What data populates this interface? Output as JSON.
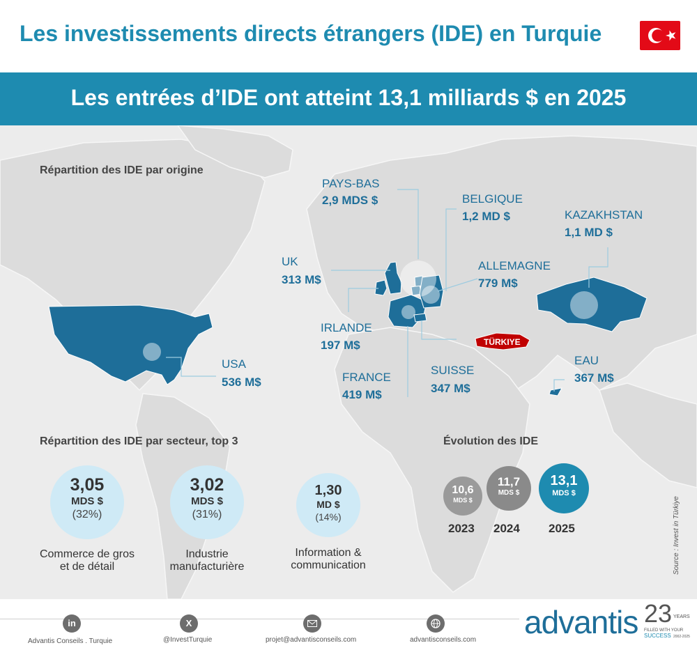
{
  "title": "Les investissements directs étrangers (IDE) en Turquie",
  "headline": "Les entrées d’IDE ont atteint 13,1 milliards $ en 2025",
  "colors": {
    "accent": "#1e8bb0",
    "country": "#1e6e99",
    "turkey": "#c00000"
  },
  "origin": {
    "heading": "Répartition des IDE par origine",
    "countries": [
      {
        "name": "PAYS-BAS",
        "value": "2,9 MDS $"
      },
      {
        "name": "BELGIQUE",
        "value": "1,2 MD $"
      },
      {
        "name": "KAZAKHSTAN",
        "value": "1,1 MD $"
      },
      {
        "name": "UK",
        "value": "313 M$"
      },
      {
        "name": "ALLEMAGNE",
        "value": "779 M$"
      },
      {
        "name": "IRLANDE",
        "value": "197 M$"
      },
      {
        "name": "USA",
        "value": "536 M$"
      },
      {
        "name": "FRANCE",
        "value": "419 M$"
      },
      {
        "name": "SUISSE",
        "value": "347 M$"
      },
      {
        "name": "EAU",
        "value": "367 M$"
      }
    ],
    "turkey_label": "TÜRKIYE"
  },
  "sector": {
    "heading": "Répartition des IDE par secteur, top 3",
    "items": [
      {
        "value": "3,05",
        "unit": "MDS $",
        "share": "(32%)",
        "label1": "Commerce de gros",
        "label2": "et de détail"
      },
      {
        "value": "3,02",
        "unit": "MDS $",
        "share": "(31%)",
        "label1": "Industrie",
        "label2": "manufacturière"
      },
      {
        "value": "1,30",
        "unit": "MD $",
        "share": "(14%)",
        "label1": "Information &",
        "label2": "communication"
      }
    ]
  },
  "evolution": {
    "heading": "Évolution des IDE",
    "items": [
      {
        "year": "2023",
        "value": "10,6",
        "unit": "MDS $",
        "color": "#9a9a9a"
      },
      {
        "year": "2024",
        "value": "11,7",
        "unit": "MDS $",
        "color": "#8a8a8a"
      },
      {
        "year": "2025",
        "value": "13,1",
        "unit": "MDS $",
        "color": "#1e8bb0"
      }
    ]
  },
  "source": "Source : Invest in Türkiye",
  "footer": {
    "linkedin_icon": "linkedin-icon",
    "linkedin": "Advantis Conseils . Turquie",
    "x_icon": "x-icon",
    "x": "@InvestTurquie",
    "mail_icon": "mail-icon",
    "mail": "projet@advantisconseils.com",
    "web_icon": "globe-icon",
    "web": "advantisconseils.com"
  },
  "logo": {
    "brand": "advantis",
    "years": "23",
    "tagline1": "YEARS",
    "tagline2": "FILLED WITH YOUR",
    "tagline3": "SUCCESS",
    "period": "2002-2025"
  }
}
